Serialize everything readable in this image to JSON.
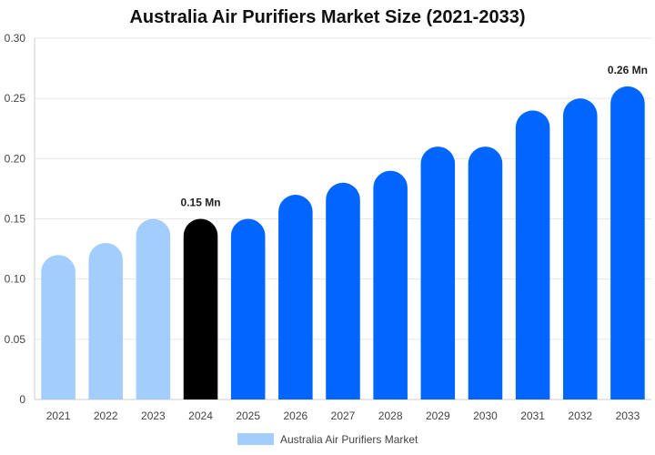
{
  "chart_data": {
    "type": "bar",
    "title": "Australia Air Purifiers Market Size (2021-2033)",
    "categories": [
      "2021",
      "2022",
      "2023",
      "2024",
      "2025",
      "2026",
      "2027",
      "2028",
      "2029",
      "2030",
      "2031",
      "2032",
      "2033"
    ],
    "series": [
      {
        "name": "Australia Air Purifiers Market",
        "values": [
          0.12,
          0.13,
          0.15,
          0.15,
          0.15,
          0.17,
          0.18,
          0.19,
          0.21,
          0.21,
          0.24,
          0.25,
          0.26
        ]
      }
    ],
    "ylim": [
      0,
      0.3
    ],
    "yticks": [
      "0",
      "0.05",
      "0.10",
      "0.15",
      "0.20",
      "0.25",
      "0.30"
    ],
    "grid": true,
    "legend_position": "bottom-center",
    "annotations": [
      {
        "category": "2024",
        "text": "0.15 Mn"
      },
      {
        "category": "2033",
        "text": "0.26 Mn"
      }
    ],
    "colors": {
      "historical": "#a3cdfd",
      "current": "#000000",
      "forecast": "#0066ff",
      "grid": "#e6e6e6",
      "axis": "#cccccc"
    },
    "bar_groups": [
      "historical",
      "historical",
      "historical",
      "current",
      "forecast",
      "forecast",
      "forecast",
      "forecast",
      "forecast",
      "forecast",
      "forecast",
      "forecast",
      "forecast"
    ]
  }
}
